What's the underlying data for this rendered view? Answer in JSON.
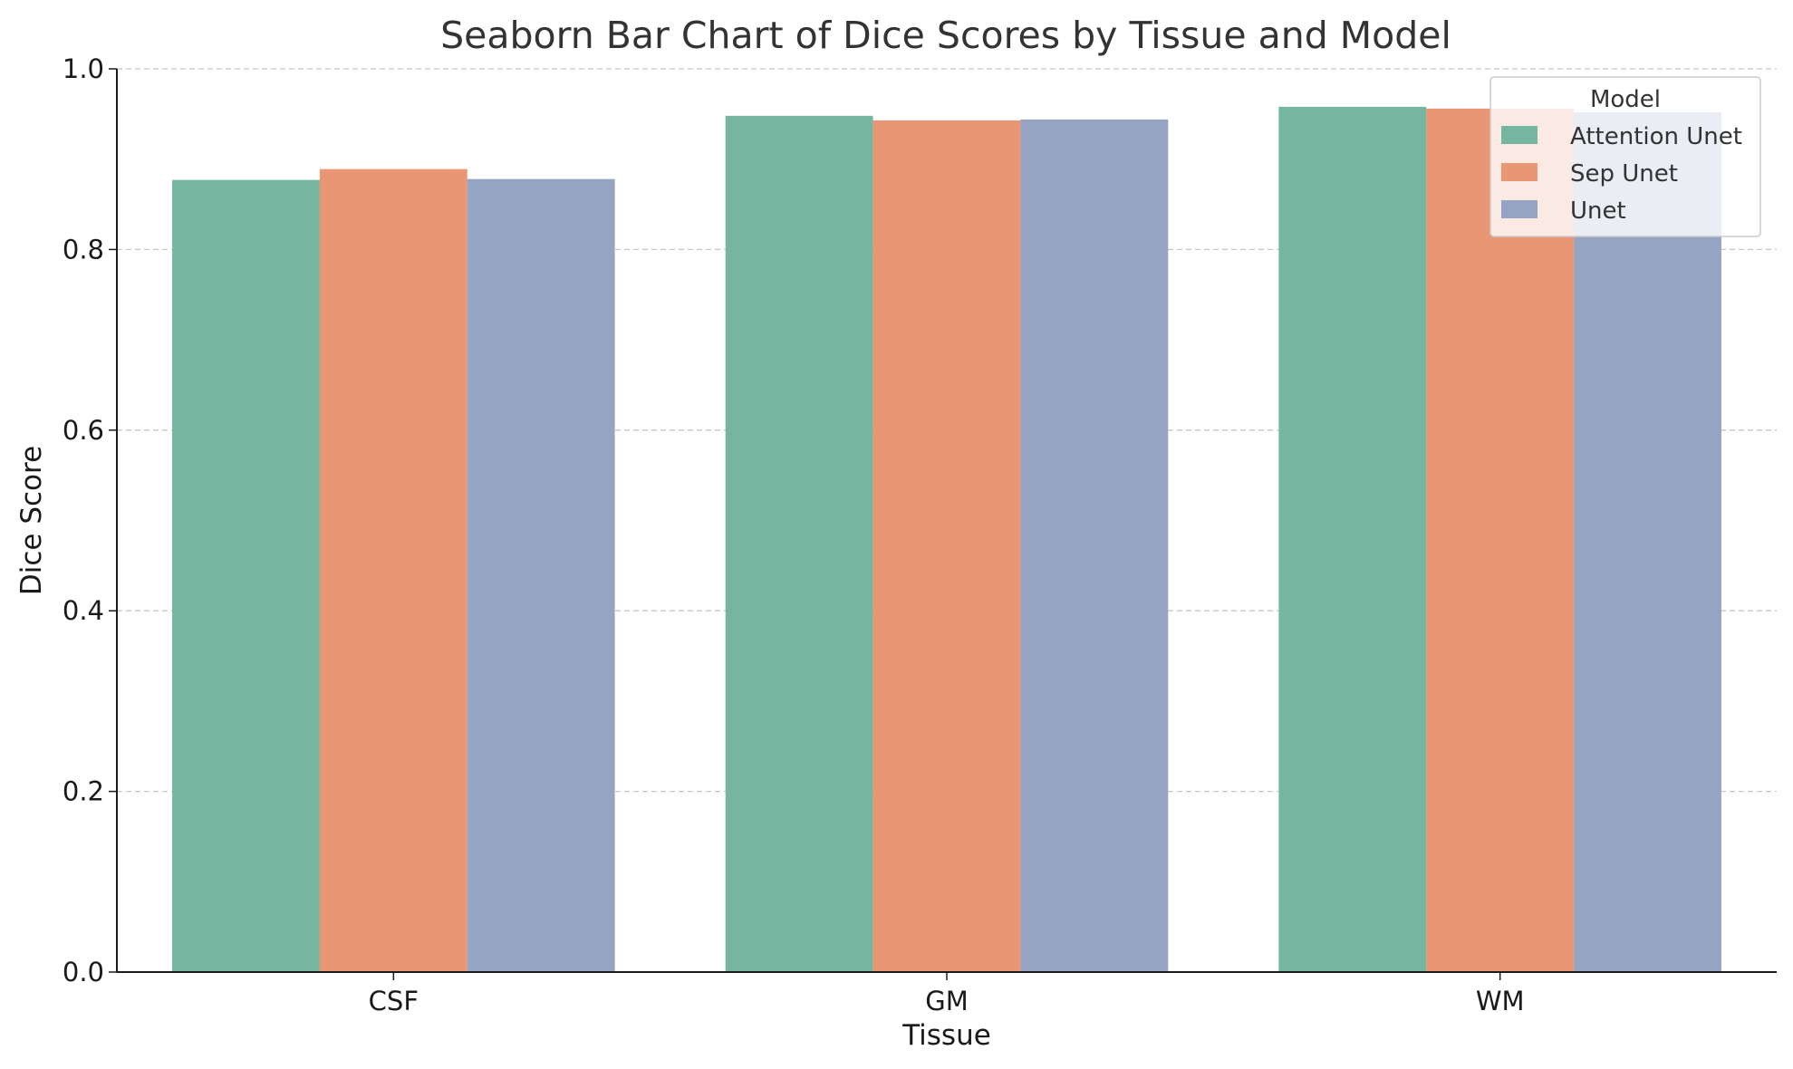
{
  "chart_data": {
    "type": "bar",
    "title": "Seaborn Bar Chart of Dice Scores by Tissue and Model",
    "xlabel": "Tissue",
    "ylabel": "Dice Score",
    "categories": [
      "CSF",
      "GM",
      "WM"
    ],
    "series": [
      {
        "name": "Attention Unet",
        "values": [
          0.877,
          0.948,
          0.958
        ],
        "color": "#76b5a0"
      },
      {
        "name": "Sep Unet",
        "values": [
          0.889,
          0.943,
          0.956
        ],
        "color": "#e99674"
      },
      {
        "name": "Unet",
        "values": [
          0.878,
          0.944,
          0.952
        ],
        "color": "#95a4c2"
      }
    ],
    "ylim": [
      0,
      1.0
    ],
    "yticks": [
      "0.0",
      "0.2",
      "0.4",
      "0.6",
      "0.8",
      "1.0"
    ],
    "grid": "y-dashed",
    "legend": {
      "title": "Model",
      "placement": "top-right"
    }
  }
}
